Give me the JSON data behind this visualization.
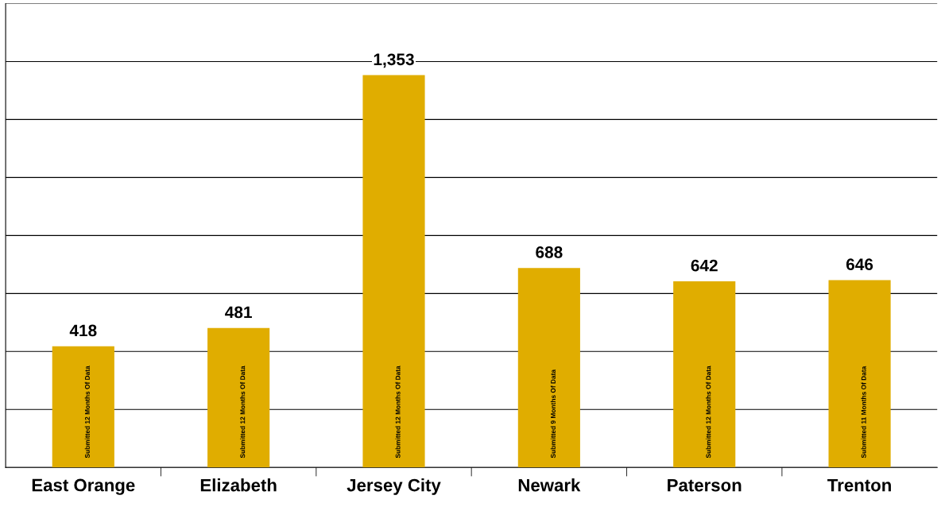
{
  "chart_data": {
    "type": "bar",
    "categories": [
      "East Orange",
      "Elizabeth",
      "Jersey City",
      "Newark",
      "Paterson",
      "Trenton"
    ],
    "values": [
      418,
      481,
      1353,
      688,
      642,
      646
    ],
    "color": "#e0ad00",
    "value_labels": [
      "418",
      "481",
      "1,353",
      "688",
      "642",
      "646"
    ],
    "ylim": [
      0,
      1600
    ],
    "yticks": [
      {
        "value": 0,
        "label": null
      },
      {
        "value": 200,
        "label": null
      },
      {
        "value": 400,
        "label": null
      },
      {
        "value": 600,
        "label": null
      },
      {
        "value": 800,
        "label": null
      },
      {
        "value": 1000,
        "label": null
      },
      {
        "value": 1200,
        "label": null
      },
      {
        "value": 1400,
        "label": null
      },
      {
        "value": 1600,
        "label": null
      }
    ],
    "tick_labels": "x",
    "grid": "y",
    "annotations": [
      "Submitted 12 Months Of Data",
      "Submitted 12 Months Of Data",
      "Submitted 12 Months Of Data",
      "Submitted 9 Months Of Data",
      "Submitted 12 Months Of Data",
      "Submitted 11 Months Of Data"
    ]
  }
}
